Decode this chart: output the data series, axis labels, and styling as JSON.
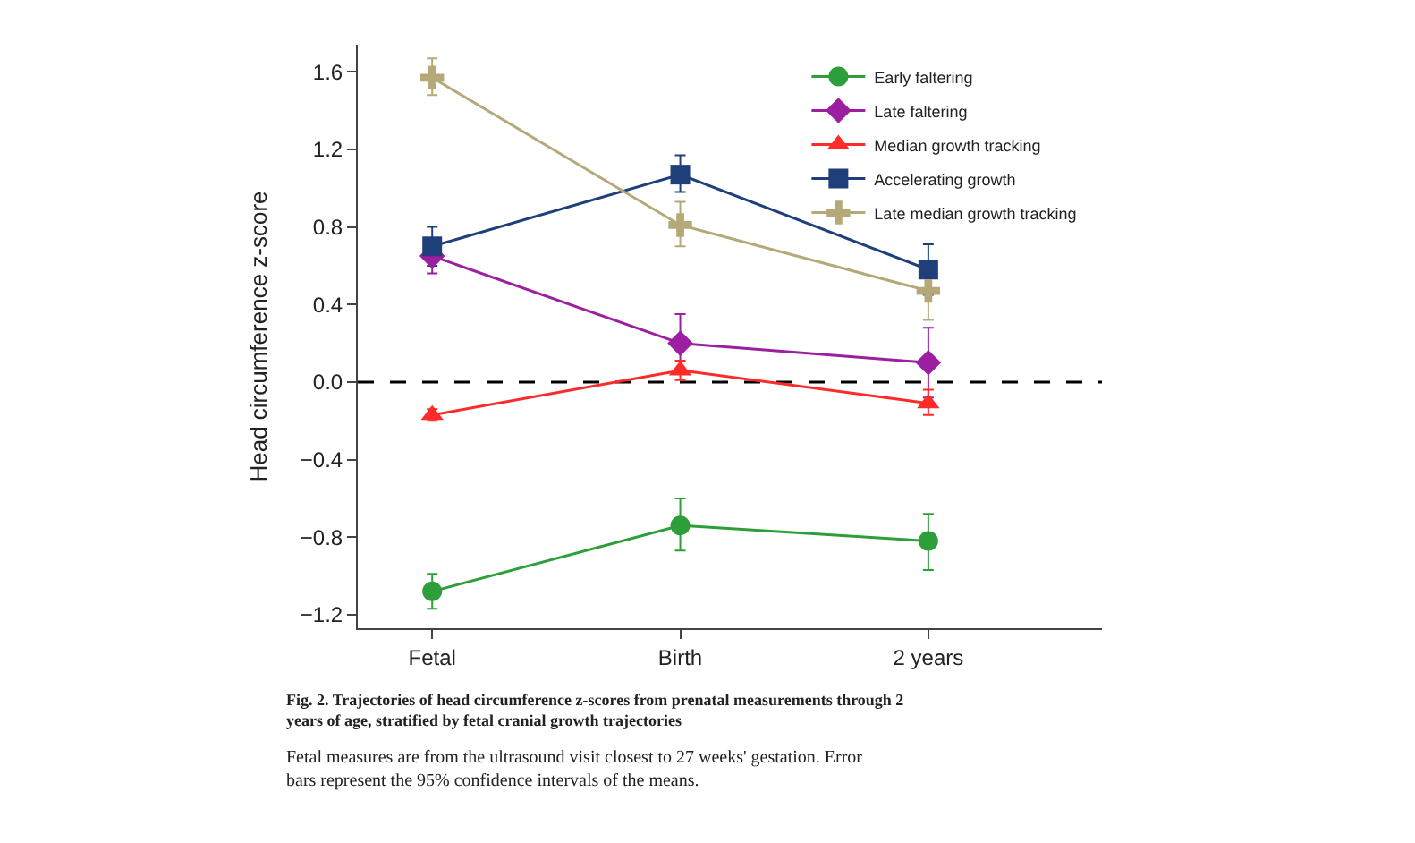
{
  "chart_data": {
    "type": "line",
    "ylabel": "Head circumference z-score",
    "categories": [
      "Fetal",
      "Birth",
      "2 years"
    ],
    "ylim": [
      -1.27,
      1.74
    ],
    "yticks": [
      {
        "value": -1.2,
        "label": "−1.2"
      },
      {
        "value": -0.8,
        "label": "−0.8"
      },
      {
        "value": -0.4,
        "label": "−0.4"
      },
      {
        "value": 0.0,
        "label": "0.0"
      },
      0.4,
      0.8,
      1.2,
      1.6
    ],
    "legend": "top right",
    "series": [
      {
        "name": "Early faltering",
        "color": "#2e9e3a",
        "marker": "circle",
        "values": [
          -1.08,
          -0.74,
          -0.82
        ],
        "errors": [
          [
            -1.17,
            -0.99
          ],
          [
            -0.87,
            -0.6
          ],
          [
            -0.97,
            -0.68
          ]
        ]
      },
      {
        "name": "Late faltering",
        "color": "#9b1fa0",
        "marker": "diamond",
        "values": [
          0.65,
          0.2,
          0.1
        ],
        "errors": [
          [
            0.56,
            0.74
          ],
          [
            0.05,
            0.35
          ],
          [
            -0.08,
            0.28
          ]
        ]
      },
      {
        "name": "Median growth tracking",
        "color": "#ff2a2a",
        "marker": "triangle",
        "values": [
          -0.17,
          0.06,
          -0.11
        ],
        "errors": [
          [
            -0.2,
            -0.14
          ],
          [
            0.01,
            0.11
          ],
          [
            -0.17,
            -0.04
          ]
        ]
      },
      {
        "name": "Accelerating growth",
        "color": "#1f3f7a",
        "marker": "square",
        "values": [
          0.7,
          1.07,
          0.58
        ],
        "errors": [
          [
            0.6,
            0.8
          ],
          [
            0.98,
            1.17
          ],
          [
            0.45,
            0.71
          ]
        ]
      },
      {
        "name": "Late median growth tracking",
        "color": "#b5a97a",
        "marker": "cross",
        "values": [
          1.57,
          0.81,
          0.47
        ],
        "errors": [
          [
            1.48,
            1.67
          ],
          [
            0.7,
            0.93
          ],
          [
            0.32,
            0.62
          ]
        ]
      }
    ],
    "ref_lines": [
      {
        "axis": "y",
        "value": 0.0,
        "color": "#000000",
        "line_style": "dashed"
      }
    ],
    "annotations": [
      "Fig. 2. Trajectories of head circumference z-scores from prenatal measurements through 2 years of age, stratified by fetal cranial growth trajectories",
      "Fetal measures are from the ultrasound visit closest to 27 weeks' gestation. Error bars represent the 95% confidence intervals of the means."
    ]
  }
}
